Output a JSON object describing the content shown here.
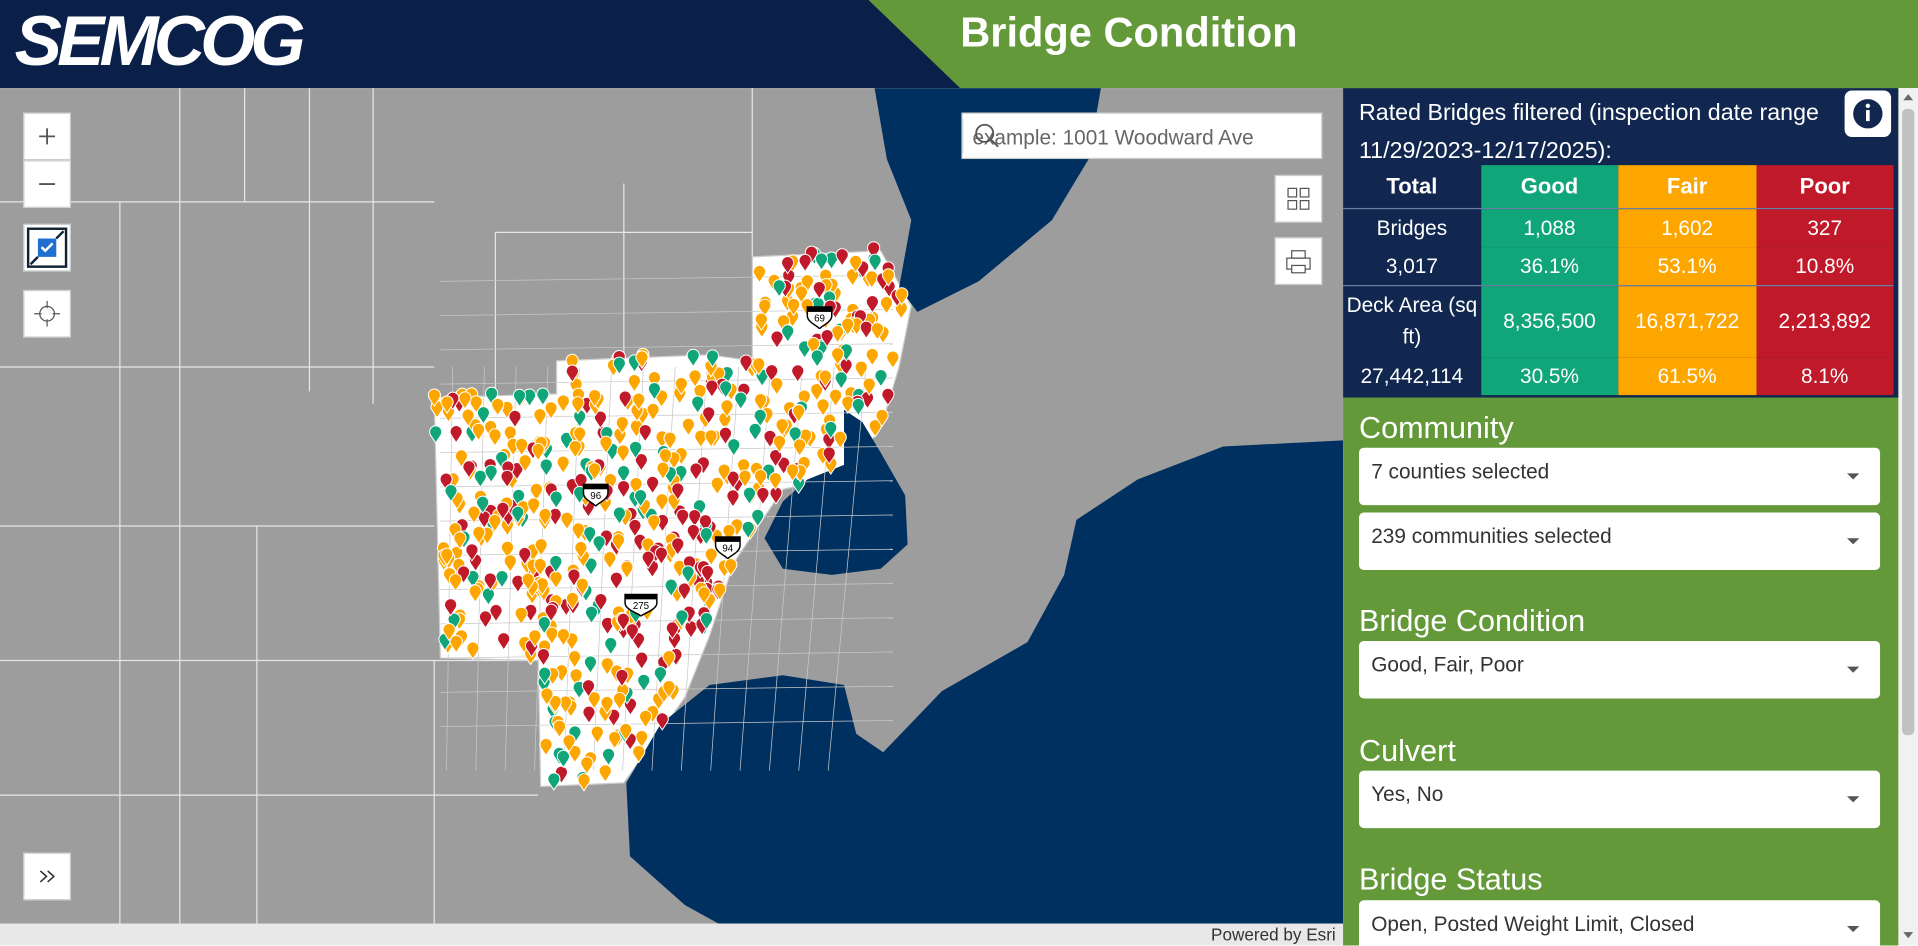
{
  "header": {
    "logo": "SEMCOG",
    "title": "Bridge Condition"
  },
  "search": {
    "placeholder": "example: 1001 Woodward Ave"
  },
  "map": {
    "shields": [
      "69",
      "96",
      "94",
      "275"
    ],
    "attribution": "Powered by Esri"
  },
  "summary": {
    "caption": "Rated Bridges filtered (inspection date range 11/29/2023-12/17/2025):",
    "columns": [
      "Total",
      "Good",
      "Fair",
      "Poor"
    ],
    "rows": [
      [
        "Bridges",
        "1,088",
        "1,602",
        "327"
      ],
      [
        "3,017",
        "36.1%",
        "53.1%",
        "10.8%"
      ],
      [
        "Deck Area (sq ft)",
        "8,356,500",
        "16,871,722",
        "2,213,892"
      ],
      [
        "27,442,114",
        "30.5%",
        "61.5%",
        "8.1%"
      ]
    ]
  },
  "filters": [
    {
      "label": "Community",
      "selects": [
        "7 counties selected",
        "239 communities selected"
      ]
    },
    {
      "label": "Bridge Condition",
      "selects": [
        "Good, Fair, Poor"
      ]
    },
    {
      "label": "Culvert",
      "selects": [
        "Yes, No"
      ]
    },
    {
      "label": "Bridge Status",
      "selects": [
        "Open, Posted Weight Limit, Closed"
      ]
    }
  ]
}
